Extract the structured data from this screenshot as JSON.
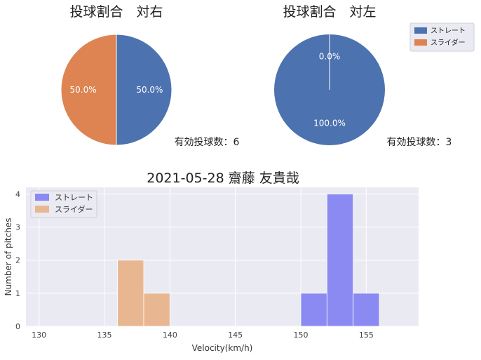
{
  "chart_data": [
    {
      "type": "pie",
      "title": "投球割合　対右",
      "categories": [
        "ストレート",
        "スライダー"
      ],
      "values": [
        50.0,
        50.0
      ],
      "value_labels": [
        "50.0%",
        "50.0%"
      ],
      "note": "有効投球数：6"
    },
    {
      "type": "pie",
      "title": "投球割合　対左",
      "categories": [
        "ストレート",
        "スライダー"
      ],
      "values": [
        100.0,
        0.0
      ],
      "value_labels": [
        "100.0%",
        "0.0%"
      ],
      "note": "有効投球数：3",
      "legend": {
        "placement": "top-right",
        "entries": [
          "ストレート",
          "スライダー"
        ]
      }
    },
    {
      "type": "bar",
      "subtype": "histogram",
      "title": "2021-05-28 齋藤 友貴哉",
      "xlabel": "Velocity(km/h)",
      "ylabel": "Number of pitches",
      "xlim": [
        129,
        159
      ],
      "ylim": [
        0,
        4.2
      ],
      "xticks": [
        130,
        135,
        140,
        145,
        150,
        155
      ],
      "yticks": [
        0,
        1,
        2,
        3,
        4
      ],
      "grid": true,
      "legend": {
        "placement": "top-left",
        "entries": [
          "ストレート",
          "スライダー"
        ]
      },
      "series": [
        {
          "name": "ストレート",
          "bins": [
            [
              150,
              152,
              1
            ],
            [
              152,
              154,
              4
            ],
            [
              154,
              156,
              1
            ]
          ]
        },
        {
          "name": "スライダー",
          "bins": [
            [
              136,
              138,
              2
            ],
            [
              138,
              140,
              1
            ]
          ]
        }
      ]
    }
  ],
  "colors": {
    "straight_pie": "#4c72b0",
    "slider_pie": "#dd8452",
    "straight_hist": "#8a8af2",
    "slider_hist": "#e8b792",
    "plot_bg": "#eaeaf2"
  }
}
